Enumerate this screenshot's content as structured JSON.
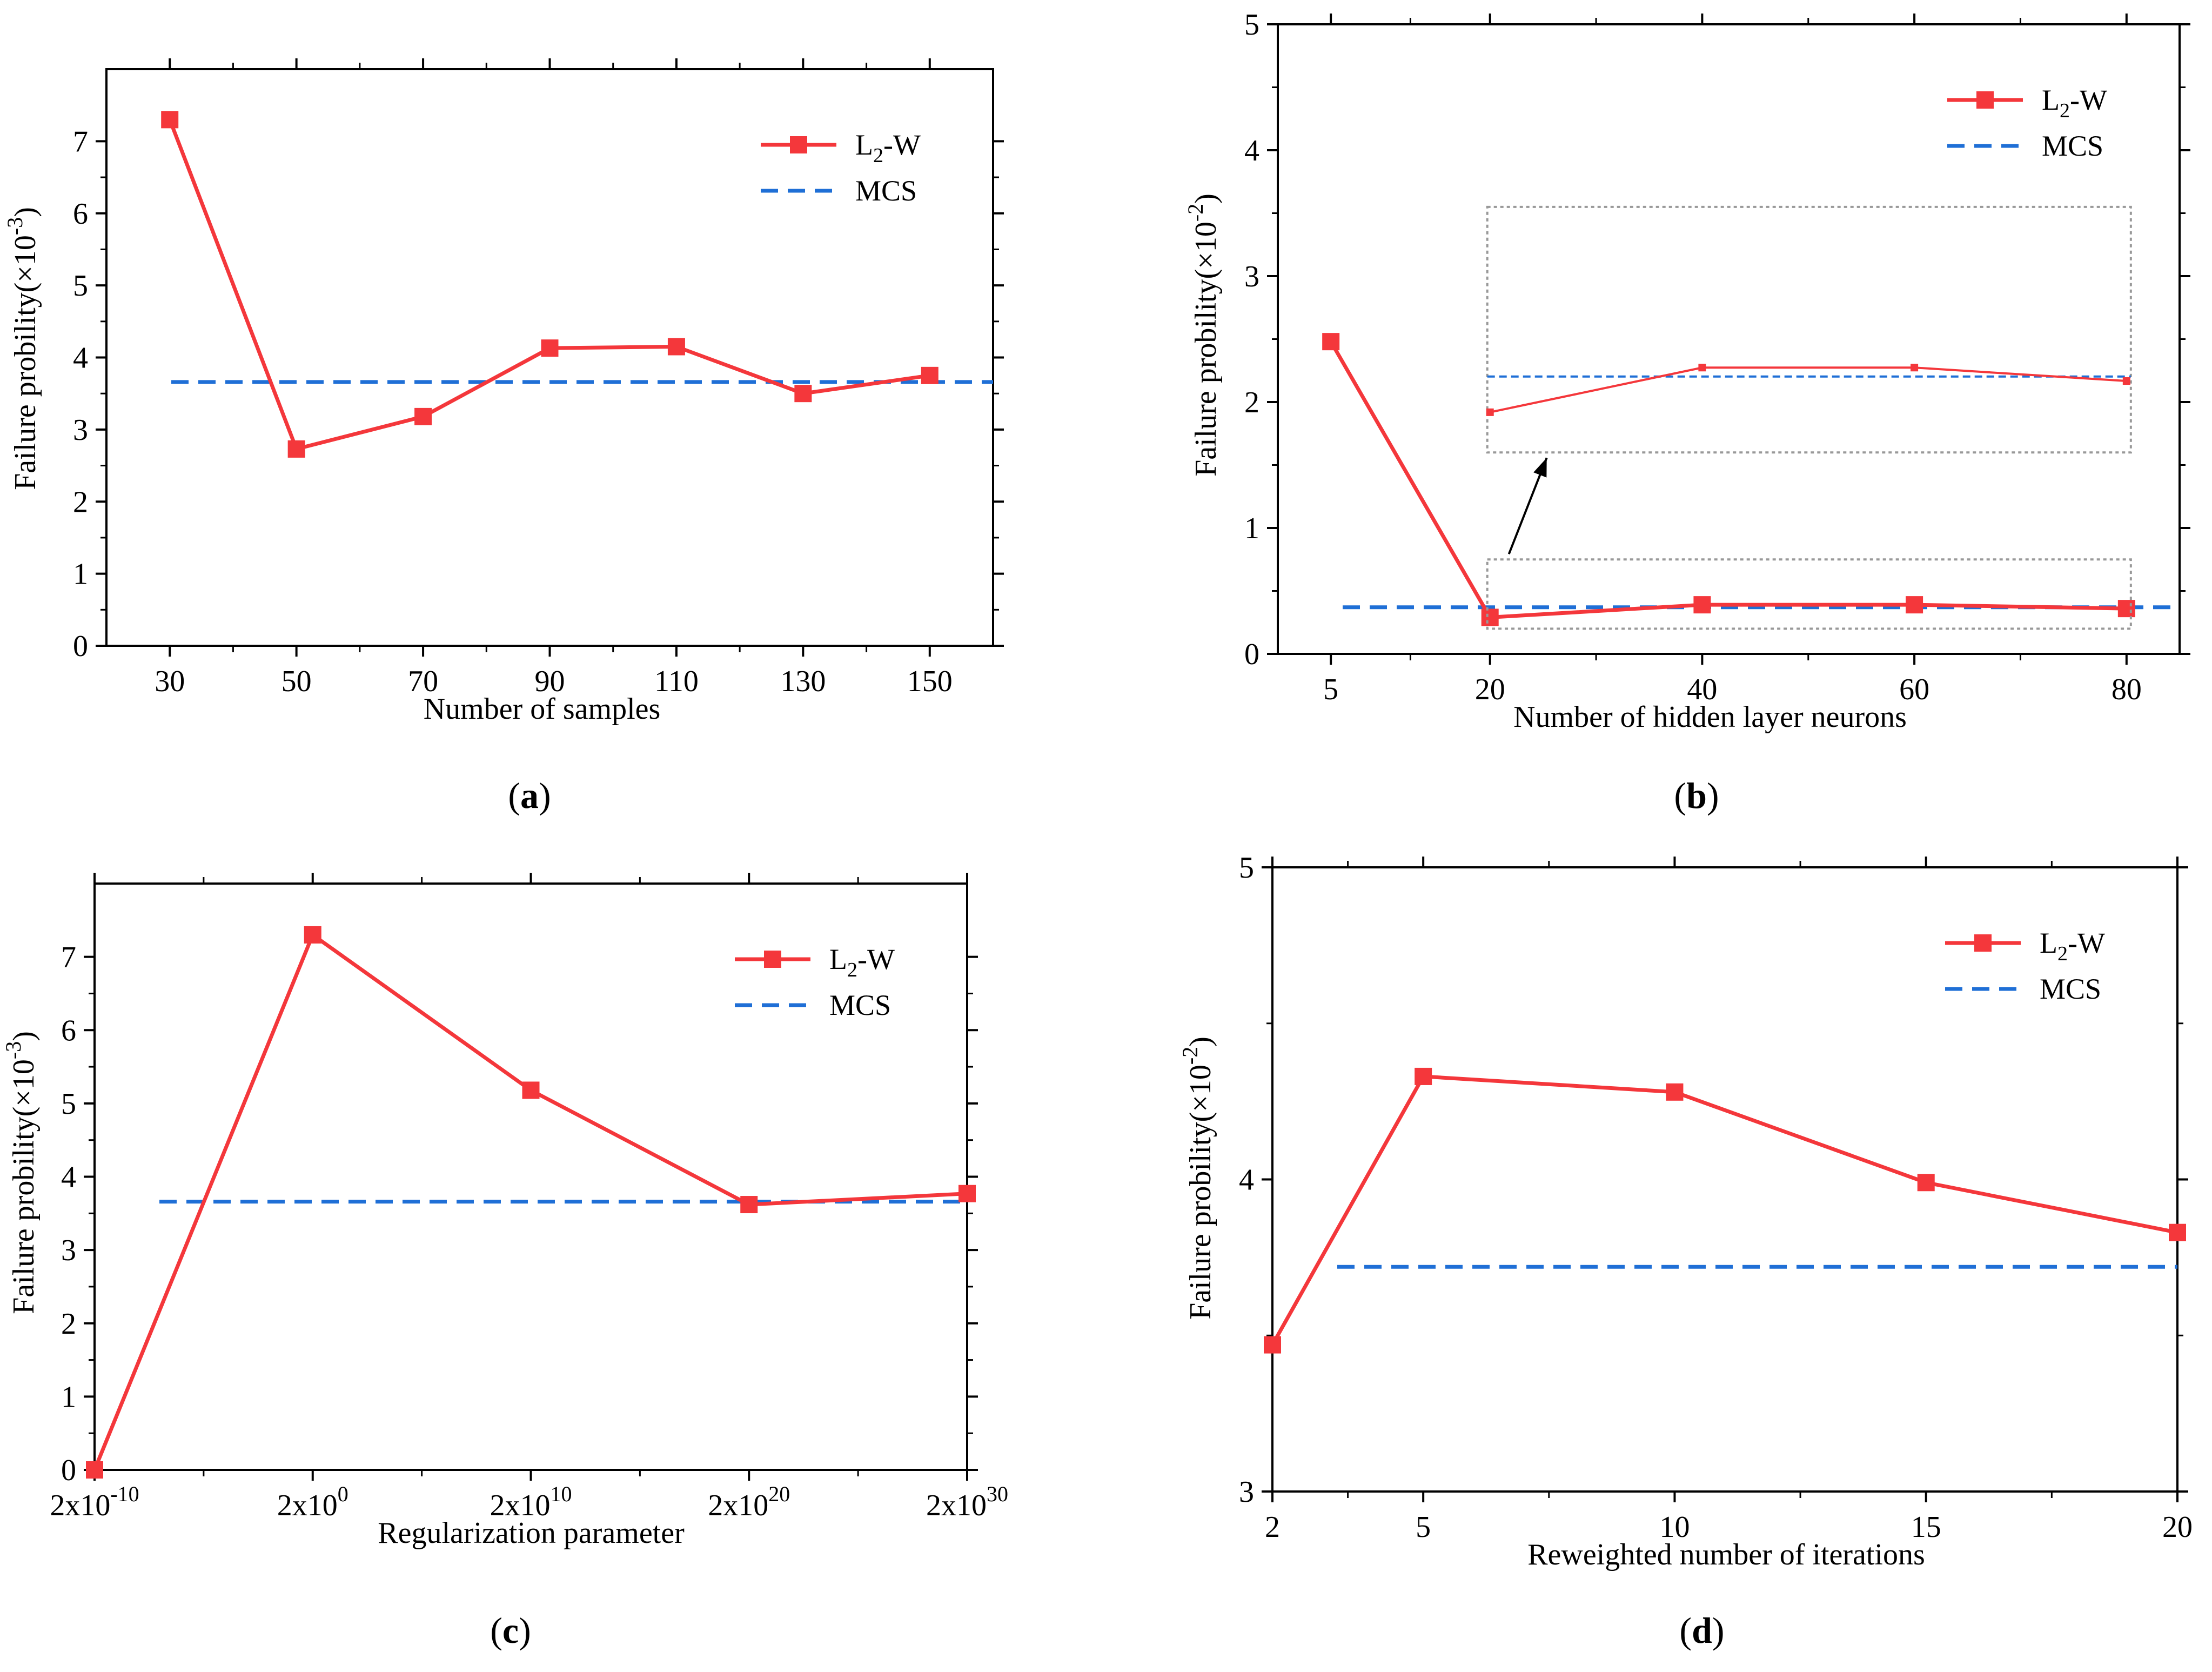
{
  "colors": {
    "l2w": "#f4373b",
    "mcs": "#1f6fd6",
    "axis": "#000000"
  },
  "chart_data": [
    {
      "id": "a",
      "type": "line",
      "caption_letter": "a",
      "caption_open": "(",
      "caption_close": ")",
      "xlabel": "Number of samples",
      "ylabel": "Failure probility(×10",
      "ylabel_exp": "-3",
      "ylabel_close": ")",
      "xlim": [
        20,
        160
      ],
      "ylim": [
        0,
        8
      ],
      "xticks": [
        {
          "v": 30,
          "label": "30"
        },
        {
          "v": 50,
          "label": "50"
        },
        {
          "v": 70,
          "label": "70"
        },
        {
          "v": 90,
          "label": "90"
        },
        {
          "v": 110,
          "label": "110"
        },
        {
          "v": 130,
          "label": "130"
        },
        {
          "v": 150,
          "label": "150"
        }
      ],
      "yticks": [
        {
          "v": 0,
          "label": "0"
        },
        {
          "v": 1,
          "label": "1"
        },
        {
          "v": 2,
          "label": "2"
        },
        {
          "v": 3,
          "label": "3"
        },
        {
          "v": 4,
          "label": "4"
        },
        {
          "v": 5,
          "label": "5"
        },
        {
          "v": 6,
          "label": "6"
        },
        {
          "v": 7,
          "label": "7"
        }
      ],
      "series": [
        {
          "name": "L2-W",
          "x": [
            30,
            50,
            70,
            90,
            110,
            130,
            150
          ],
          "y": [
            7.3,
            2.73,
            3.18,
            4.13,
            4.15,
            3.5,
            3.75
          ]
        }
      ],
      "mcs": {
        "name": "MCS",
        "value": 3.66
      },
      "legend": {
        "l2w_main": "L",
        "l2w_sub": "2",
        "l2w_tail": "-W",
        "mcs": "MCS"
      }
    },
    {
      "id": "b",
      "type": "line",
      "caption_letter": "b",
      "caption_open": "(",
      "caption_close": ")",
      "xlabel": "Number of hidden layer neurons",
      "ylabel": "Failure probility(×10",
      "ylabel_exp": "-2",
      "ylabel_close": ")",
      "xlim": [
        0,
        85
      ],
      "ylim": [
        0,
        5
      ],
      "xticks": [
        {
          "v": 5,
          "label": "5"
        },
        {
          "v": 20,
          "label": "20"
        },
        {
          "v": 40,
          "label": "40"
        },
        {
          "v": 60,
          "label": "60"
        },
        {
          "v": 80,
          "label": "80"
        }
      ],
      "yticks": [
        {
          "v": 0,
          "label": "0"
        },
        {
          "v": 1,
          "label": "1"
        },
        {
          "v": 2,
          "label": "2"
        },
        {
          "v": 3,
          "label": "3"
        },
        {
          "v": 4,
          "label": "4"
        },
        {
          "v": 5,
          "label": "5"
        }
      ],
      "series": [
        {
          "name": "L2-W",
          "x": [
            5,
            20,
            40,
            60,
            80
          ],
          "y": [
            2.48,
            0.29,
            0.39,
            0.39,
            0.36
          ]
        }
      ],
      "mcs": {
        "name": "MCS",
        "value": 0.37
      },
      "legend": {
        "l2w_main": "L",
        "l2w_sub": "2",
        "l2w_tail": "-W",
        "mcs": "MCS"
      },
      "inset": {
        "source_y_range": [
          0.2,
          0.75
        ],
        "target_y_range": [
          1.6,
          3.55
        ]
      }
    },
    {
      "id": "c",
      "type": "line",
      "caption_letter": "c",
      "caption_open": "(",
      "caption_close": ")",
      "xlabel": "Regularization parameter",
      "ylabel": "Failure probility(×10",
      "ylabel_exp": "-3",
      "ylabel_close": ")",
      "xlim": [
        0,
        4
      ],
      "ylim": [
        0,
        8
      ],
      "xticks": [
        {
          "v": 0,
          "base": "2x10",
          "exp": "-10"
        },
        {
          "v": 1,
          "base": "2x10",
          "exp": "0"
        },
        {
          "v": 2,
          "base": "2x10",
          "exp": "10"
        },
        {
          "v": 3,
          "base": "2x10",
          "exp": "20"
        },
        {
          "v": 4,
          "base": "2x10",
          "exp": "30"
        }
      ],
      "yticks": [
        {
          "v": 0,
          "label": "0"
        },
        {
          "v": 1,
          "label": "1"
        },
        {
          "v": 2,
          "label": "2"
        },
        {
          "v": 3,
          "label": "3"
        },
        {
          "v": 4,
          "label": "4"
        },
        {
          "v": 5,
          "label": "5"
        },
        {
          "v": 6,
          "label": "6"
        },
        {
          "v": 7,
          "label": "7"
        }
      ],
      "series": [
        {
          "name": "L2-W",
          "x": [
            0,
            1,
            2,
            3,
            4
          ],
          "y": [
            0.0,
            7.3,
            5.18,
            3.62,
            3.77
          ]
        }
      ],
      "mcs": {
        "name": "MCS",
        "value": 3.66
      },
      "legend": {
        "l2w_main": "L",
        "l2w_sub": "2",
        "l2w_tail": "-W",
        "mcs": "MCS"
      }
    },
    {
      "id": "d",
      "type": "line",
      "caption_letter": "d",
      "caption_open": "(",
      "caption_close": ")",
      "xlabel": "Reweighted number of iterations",
      "ylabel": "Failure probility(×10",
      "ylabel_exp": "-2",
      "ylabel_close": ")",
      "xlim": [
        2,
        20
      ],
      "ylim": [
        3,
        5
      ],
      "xticks": [
        {
          "v": 2,
          "label": "2"
        },
        {
          "v": 5,
          "label": "5"
        },
        {
          "v": 10,
          "label": "10"
        },
        {
          "v": 15,
          "label": "15"
        },
        {
          "v": 20,
          "label": "20"
        }
      ],
      "minor_xticks": [
        3.5,
        7.5,
        12.5,
        17.5
      ],
      "yticks": [
        {
          "v": 3,
          "label": "3"
        },
        {
          "v": 4,
          "label": "4"
        },
        {
          "v": 5,
          "label": "5"
        }
      ],
      "series": [
        {
          "name": "L2-W",
          "x": [
            2,
            5,
            10,
            15,
            20
          ],
          "y": [
            3.47,
            4.33,
            4.28,
            3.99,
            3.83
          ]
        }
      ],
      "mcs": {
        "name": "MCS",
        "value": 3.72
      },
      "legend": {
        "l2w_main": "L",
        "l2w_sub": "2",
        "l2w_tail": "-W",
        "mcs": "MCS"
      }
    }
  ]
}
